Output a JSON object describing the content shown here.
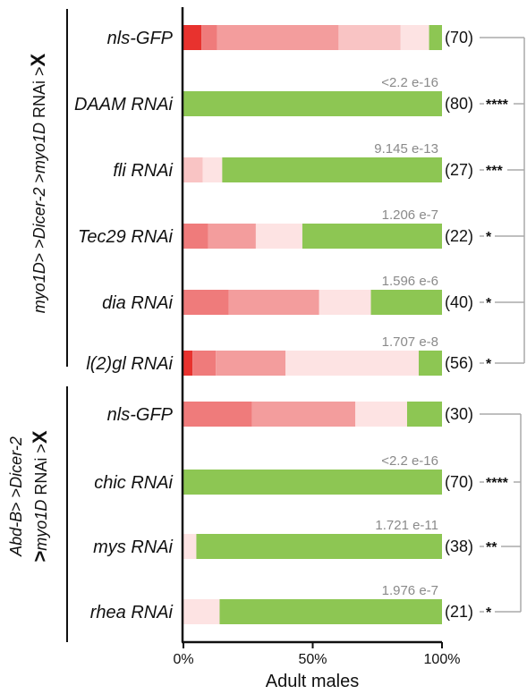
{
  "chart_data": {
    "type": "bar",
    "stacked": true,
    "orientation": "horizontal",
    "xlabel": "Adult males",
    "xlim": [
      0,
      100
    ],
    "x_ticks": [
      "0%",
      "50%",
      "100%"
    ],
    "stack_colors": [
      "#e8322e",
      "#ef7b7b",
      "#f39d9d",
      "#f9c4c4",
      "#fde3e3",
      "#8dc653"
    ],
    "groups": [
      {
        "label_parts": [
          {
            "text": "myo1D",
            "italic": true
          },
          {
            "text": "> >",
            "italic": false
          },
          {
            "text": "Dicer-2",
            "italic": true
          },
          {
            "text": " >",
            "italic": false
          },
          {
            "text": "myo1D",
            "italic": true
          },
          {
            "text": " RNAi >",
            "italic": false
          },
          {
            "text": "X",
            "italic": false,
            "bold": true
          }
        ],
        "rows": [
          {
            "label": "nls-GFP",
            "n": "(70)",
            "pval": "",
            "sig": "",
            "segments": [
              7,
              6,
              47,
              24,
              11,
              5
            ]
          },
          {
            "label": "DAAM RNAi",
            "n": "(80)",
            "pval": "<2.2 e-16",
            "sig": "****",
            "segments": [
              0,
              0,
              0,
              0,
              0,
              100
            ]
          },
          {
            "label": "fli RNAi",
            "n": "(27)",
            "pval": "9.145 e-13",
            "sig": "***",
            "segments": [
              0,
              0,
              0,
              7.5,
              7.5,
              85
            ]
          },
          {
            "label": "Tec29 RNAi",
            "n": "(22)",
            "pval": "1.206 e-7",
            "sig": "*",
            "segments": [
              0,
              9.5,
              18.5,
              0,
              18,
              54
            ]
          },
          {
            "label": "dia RNAi",
            "n": "(40)",
            "pval": "1.596 e-6",
            "sig": "*",
            "segments": [
              0,
              17.5,
              35,
              0,
              20,
              27.5
            ]
          },
          {
            "label": "l(2)gl RNAi",
            "n": "(56)",
            "pval": "1.707 e-8",
            "sig": "*",
            "segments": [
              3.5,
              9,
              27,
              0,
              51.5,
              9
            ]
          }
        ]
      },
      {
        "label_parts": [
          {
            "text": "Abd-B",
            "italic": true
          },
          {
            "text": "> >",
            "italic": false
          },
          {
            "text": "Dicer-2",
            "italic": true
          },
          {
            "text": "|",
            "italic": false
          },
          {
            "text": ">",
            "italic": false,
            "bold": true
          },
          {
            "text": "myo1D",
            "italic": true
          },
          {
            "text": " RNAi >",
            "italic": false
          },
          {
            "text": "X",
            "italic": false,
            "bold": true
          }
        ],
        "rows": [
          {
            "label": "nls-GFP",
            "n": "(30)",
            "pval": "",
            "sig": "",
            "segments": [
              0,
              26.5,
              40,
              0,
              20,
              13.5
            ]
          },
          {
            "label": "chic  RNAi",
            "n": "(70)",
            "pval": "<2.2 e-16",
            "sig": "****",
            "segments": [
              0,
              0,
              0,
              0,
              0,
              100
            ]
          },
          {
            "label": "mys  RNAi",
            "n": "(38)",
            "pval": "1.721 e-11",
            "sig": "**",
            "segments": [
              0,
              0,
              0,
              0,
              5,
              95
            ]
          },
          {
            "label": "rhea RNAi",
            "n": "(21)",
            "pval": "1.976 e-7",
            "sig": "*",
            "segments": [
              0,
              0,
              0,
              0,
              14,
              86
            ]
          }
        ]
      }
    ]
  }
}
